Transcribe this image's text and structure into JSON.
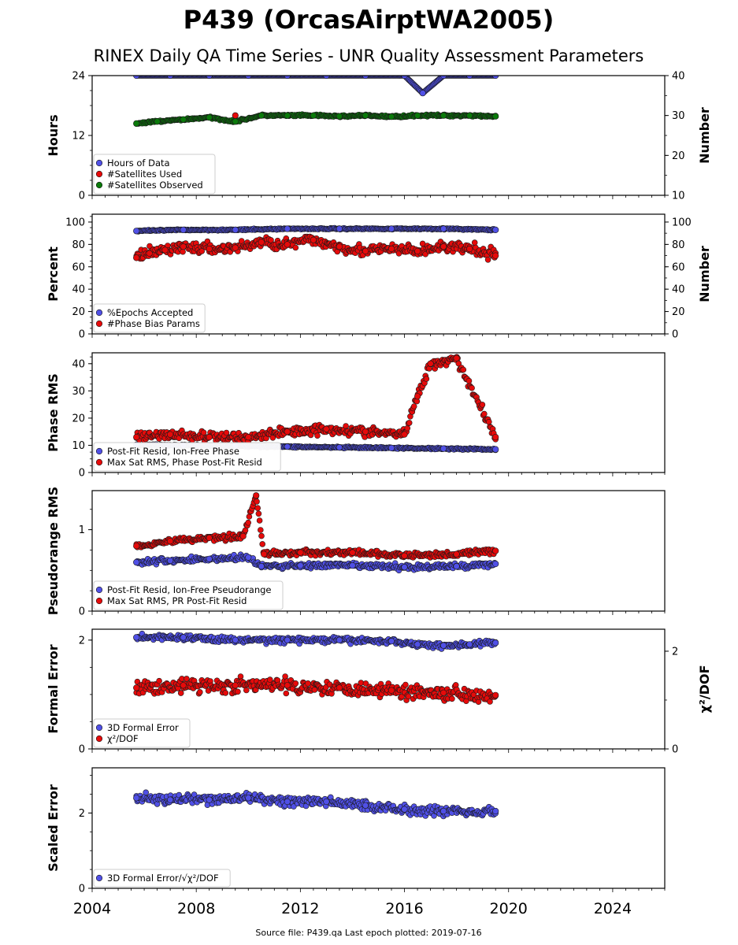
{
  "title": "P439 (OrcasAirptWA2005)",
  "subtitle": "RINEX Daily QA Time Series - UNR Quality Assessment Parameters",
  "footer": "Source file: P439.qa Last epoch plotted: 2019-07-16",
  "colors": {
    "blue": "#5050e6",
    "red": "#e60a0a",
    "green": "#0a7a0a",
    "edge": "#1a1a1a"
  },
  "chart_data": [
    {
      "type": "scatter",
      "ylabel": "Hours",
      "ylabel_right": "Number",
      "xlim": [
        2004,
        2026
      ],
      "ylim": [
        0,
        24
      ],
      "ylim_right": [
        10,
        40
      ],
      "yticks": [
        0,
        12,
        24
      ],
      "yticks_right": [
        10,
        20,
        30,
        40
      ],
      "legend": "lower-left",
      "series": [
        {
          "name": "Hours of Data",
          "color": "blue",
          "axis": "left",
          "x": [
            2005.7,
            2007.0,
            2008.5,
            2010.0,
            2011.5,
            2013.0,
            2014.5,
            2016.0,
            2016.7,
            2017.5,
            2018.5,
            2019.5
          ],
          "y": [
            24,
            24,
            24,
            24,
            24,
            24,
            24,
            24,
            20.5,
            24,
            24,
            24
          ]
        },
        {
          "name": "#Satellites Used",
          "color": "red",
          "axis": "right",
          "x": [
            2009.5
          ],
          "y": [
            30
          ]
        },
        {
          "name": "#Satellites Observed",
          "color": "green",
          "axis": "right",
          "x": [
            2005.7,
            2006.5,
            2007.5,
            2008.5,
            2009.5,
            2010.5,
            2011.5,
            2012.5,
            2013.5,
            2014.5,
            2015.5,
            2016.5,
            2017.5,
            2018.5,
            2019.5
          ],
          "y": [
            28,
            28.5,
            29,
            29.5,
            28.5,
            30,
            30,
            30,
            29.8,
            30,
            29.7,
            30,
            30,
            30,
            29.8
          ]
        }
      ]
    },
    {
      "type": "scatter",
      "ylabel": "Percent",
      "ylabel_right": "Number",
      "xlim": [
        2004,
        2026
      ],
      "ylim": [
        0,
        107
      ],
      "ylim_right": [
        0,
        107
      ],
      "yticks": [
        0,
        20,
        40,
        60,
        80,
        100
      ],
      "yticks_right": [
        0,
        20,
        40,
        60,
        80,
        100
      ],
      "legend": "lower-left",
      "series": [
        {
          "name": "%Epochs Accepted",
          "color": "blue",
          "axis": "left",
          "x": [
            2005.7,
            2007.5,
            2009.5,
            2011.5,
            2013.5,
            2015.5,
            2017.5,
            2019.5
          ],
          "y": [
            92,
            93,
            93,
            94,
            94,
            94,
            94,
            93
          ]
        },
        {
          "name": "#Phase Bias Params",
          "color": "red",
          "axis": "right",
          "x": [
            2005.7,
            2006.2,
            2006.8,
            2007.5,
            2008.5,
            2009.5,
            2010.5,
            2011.5,
            2012.5,
            2013.5,
            2014.5,
            2015.5,
            2016.5,
            2017.5,
            2018.5,
            2019.5
          ],
          "y": [
            68,
            72,
            75,
            78,
            76,
            77,
            82,
            80,
            84,
            78,
            74,
            76,
            74,
            78,
            76,
            70
          ]
        }
      ]
    },
    {
      "type": "scatter",
      "ylabel": "Phase RMS",
      "xlim": [
        2004,
        2026
      ],
      "ylim": [
        0,
        44
      ],
      "yticks": [
        0,
        10,
        20,
        30,
        40
      ],
      "legend": "lower-left",
      "series": [
        {
          "name": "Post-Fit Resid, Ion-Free Phase",
          "color": "blue",
          "axis": "left",
          "x": [
            2005.7,
            2007.5,
            2009.5,
            2011.5,
            2013.5,
            2015.5,
            2017.5,
            2019.5
          ],
          "y": [
            10.2,
            10,
            9.8,
            9.5,
            9.2,
            9.0,
            8.8,
            8.5
          ]
        },
        {
          "name": "Max Sat RMS, Phase Post-Fit Resid",
          "color": "red",
          "axis": "left",
          "x": [
            2005.7,
            2007.0,
            2008.5,
            2010.0,
            2011.5,
            2013.0,
            2014.5,
            2016.0,
            2016.5,
            2017.0,
            2018.0,
            2019.5
          ],
          "y": [
            13,
            14,
            13,
            13,
            15,
            16,
            15,
            14,
            28,
            40,
            42,
            13
          ]
        }
      ]
    },
    {
      "type": "scatter",
      "ylabel": "Pseudorange RMS",
      "xlim": [
        2004,
        2026
      ],
      "ylim": [
        0,
        1.48
      ],
      "yticks": [
        0,
        1
      ],
      "legend": "lower-left",
      "series": [
        {
          "name": "Post-Fit Resid, Ion-Free Pseudorange",
          "color": "blue",
          "axis": "left",
          "x": [
            2005.7,
            2007.0,
            2008.5,
            2010.0,
            2010.5,
            2012.0,
            2014.0,
            2016.0,
            2018.0,
            2019.5
          ],
          "y": [
            0.6,
            0.62,
            0.64,
            0.66,
            0.55,
            0.56,
            0.56,
            0.54,
            0.55,
            0.58
          ]
        },
        {
          "name": "Max Sat RMS, PR Post-Fit Resid",
          "color": "red",
          "axis": "left",
          "x": [
            2005.7,
            2007.0,
            2008.5,
            2009.8,
            2010.3,
            2010.6,
            2012.0,
            2014.0,
            2016.0,
            2018.0,
            2019.5
          ],
          "y": [
            0.8,
            0.86,
            0.9,
            0.92,
            1.42,
            0.7,
            0.72,
            0.72,
            0.68,
            0.7,
            0.74
          ]
        }
      ]
    },
    {
      "type": "scatter",
      "ylabel": "Formal Error",
      "ylabel_right": "χ²/DOF",
      "xlim": [
        2004,
        2026
      ],
      "ylim": [
        0,
        2.2
      ],
      "ylim_right": [
        0,
        2.45
      ],
      "yticks": [
        0,
        2
      ],
      "yticks_right": [
        0,
        2
      ],
      "legend": "lower-left",
      "series": [
        {
          "name": "3D Formal Error",
          "color": "blue",
          "axis": "left",
          "x": [
            2005.7,
            2007.5,
            2009.5,
            2011.5,
            2013.5,
            2015.5,
            2016.5,
            2017.5,
            2018.5,
            2019.5
          ],
          "y": [
            2.05,
            2.05,
            2.0,
            2.0,
            2.0,
            1.98,
            1.92,
            1.9,
            1.92,
            1.95
          ]
        },
        {
          "name": "χ²/DOF",
          "color": "red",
          "axis": "right",
          "x": [
            2005.7,
            2007.5,
            2009.5,
            2011.5,
            2013.5,
            2015.5,
            2017.5,
            2019.5
          ],
          "y": [
            1.25,
            1.3,
            1.3,
            1.3,
            1.25,
            1.2,
            1.15,
            1.1
          ]
        }
      ]
    },
    {
      "type": "scatter",
      "ylabel": "Scaled Error",
      "xlim": [
        2004,
        2026
      ],
      "ylim": [
        0,
        3.2
      ],
      "yticks": [
        0,
        2
      ],
      "legend": "lower-left",
      "series": [
        {
          "name": "3D Formal Error/√χ²/DOF",
          "color": "blue",
          "axis": "left",
          "x": [
            2005.7,
            2007.0,
            2008.5,
            2010.0,
            2011.5,
            2013.0,
            2014.5,
            2016.0,
            2017.5,
            2019.5
          ],
          "y": [
            2.4,
            2.35,
            2.35,
            2.4,
            2.3,
            2.3,
            2.2,
            2.1,
            2.05,
            2.05
          ]
        }
      ]
    }
  ],
  "xaxis": {
    "ticks": [
      2004,
      2008,
      2012,
      2016,
      2020,
      2024
    ]
  }
}
